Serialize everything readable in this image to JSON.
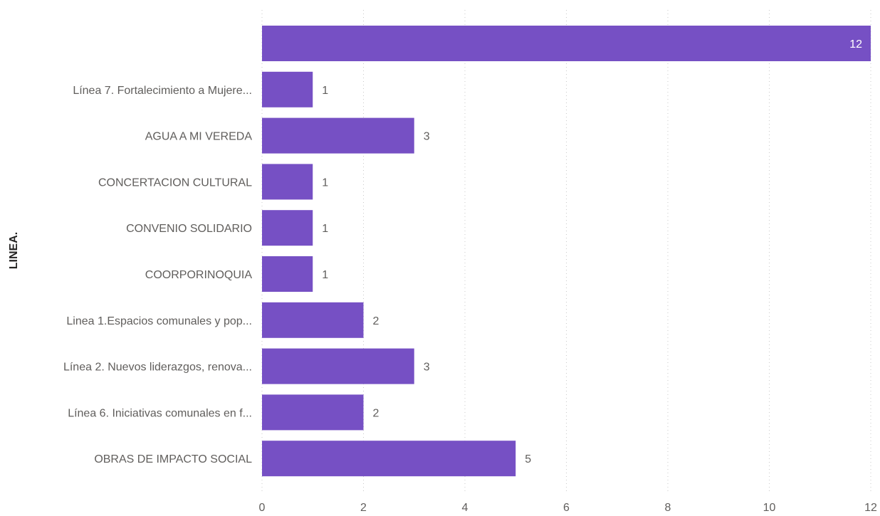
{
  "chart_data": {
    "type": "bar",
    "orientation": "horizontal",
    "title": "",
    "ylabel": "LINEA.",
    "xlabel": "",
    "categories": [
      "",
      "Línea 7. Fortalecimiento a Mujere...",
      "AGUA A MI VEREDA",
      "CONCERTACION CULTURAL",
      "CONVENIO SOLIDARIO",
      "COORPORINOQUIA",
      "Linea 1.Espacios comunales y pop...",
      "Línea 2. Nuevos liderazgos, renova...",
      "Línea 6. Iniciativas comunales en f...",
      "OBRAS DE IMPACTO SOCIAL"
    ],
    "values": [
      12,
      1,
      3,
      1,
      1,
      1,
      2,
      3,
      2,
      5
    ],
    "xlim": [
      0,
      12
    ],
    "xticks": [
      0,
      2,
      4,
      6,
      8,
      10,
      12
    ],
    "grid": true,
    "bar_color": "#7650c4"
  }
}
